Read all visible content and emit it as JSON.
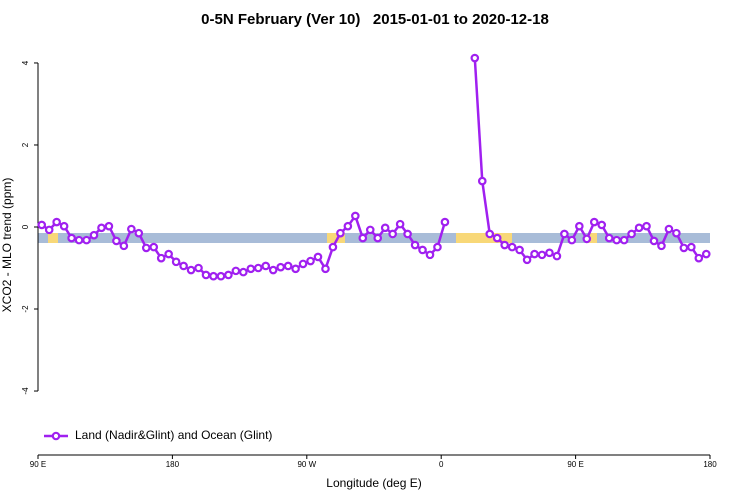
{
  "chart_data": {
    "type": "line",
    "title": "0-5N February (Ver 10)   2015-01-01 to 2020-12-18",
    "x_label": "Longitude (deg E)",
    "y_label": "XCO2 - MLO trend (ppm)",
    "xlim": [
      90,
      540
    ],
    "ylim": [
      -5.56,
      4.56
    ],
    "xticks": [
      {
        "value": 90,
        "label": "90 E"
      },
      180,
      {
        "value": 270,
        "label": "90 W"
      },
      {
        "value": 360,
        "label": "0"
      },
      {
        "value": 450,
        "label": "90 E"
      },
      {
        "value": 540,
        "label": "180"
      }
    ],
    "yticks": [
      -4,
      -2,
      0,
      2,
      4
    ],
    "legend": "bottom-left",
    "x": [
      92.5,
      97.5,
      102.5,
      107.5,
      112.5,
      117.5,
      122.5,
      127.5,
      132.5,
      137.5,
      142.5,
      147.5,
      152.5,
      157.5,
      162.5,
      167.5,
      172.5,
      177.5,
      182.5,
      187.5,
      192.5,
      197.5,
      202.5,
      207.5,
      212.5,
      217.5,
      222.5,
      227.5,
      232.5,
      237.5,
      242.5,
      247.5,
      252.5,
      257.5,
      262.5,
      267.5,
      272.5,
      277.5,
      282.5,
      287.5,
      292.5,
      297.5,
      302.5,
      307.5,
      312.5,
      317.5,
      322.5,
      327.5,
      332.5,
      337.5,
      342.5,
      347.5,
      352.5,
      357.5,
      362.5,
      367.5,
      372.5,
      377.5,
      382.5,
      387.5,
      392.5,
      397.5,
      402.5,
      407.5,
      412.5,
      417.5,
      422.5,
      427.5,
      432.5,
      437.5,
      442.5,
      447.5,
      452.5,
      457.5,
      462.5,
      467.5,
      472.5,
      477.5,
      482.5,
      487.5,
      492.5,
      497.5,
      502.5,
      507.5,
      512.5,
      517.5,
      522.5,
      527.5,
      532.5,
      537.5
    ],
    "series": [
      {
        "name": "Land (Nadir&Glint) and Ocean (Glint)",
        "color": "#a020f0",
        "values": [
          0.05,
          -0.07,
          0.12,
          0.02,
          -0.27,
          -0.32,
          -0.32,
          -0.2,
          -0.02,
          0.02,
          -0.34,
          -0.46,
          -0.05,
          -0.15,
          -0.51,
          -0.49,
          -0.76,
          -0.66,
          -0.85,
          -0.95,
          -1.05,
          -1.0,
          -1.17,
          -1.2,
          -1.2,
          -1.17,
          -1.07,
          -1.1,
          -1.02,
          -1.0,
          -0.95,
          -1.05,
          -0.98,
          -0.95,
          -1.02,
          -0.9,
          -0.83,
          -0.73,
          -1.02,
          -0.49,
          -0.15,
          0.02,
          0.27,
          -0.27,
          -0.07,
          -0.27,
          -0.02,
          -0.17,
          0.07,
          -0.17,
          -0.44,
          -0.56,
          -0.68,
          -0.49,
          0.12,
          null,
          null,
          null,
          4.12,
          1.12,
          -0.17,
          -0.27,
          -0.44,
          -0.49,
          -0.56,
          -0.8,
          -0.66,
          -0.68,
          -0.63,
          -0.71,
          -0.17,
          -0.32,
          0.02,
          -0.29,
          0.12,
          0.05,
          -0.27,
          -0.32,
          -0.32,
          -0.17,
          -0.02,
          0.02,
          -0.34,
          -0.46,
          -0.05,
          -0.15,
          -0.51,
          -0.49,
          -0.76,
          -0.66
        ]
      }
    ]
  }
}
